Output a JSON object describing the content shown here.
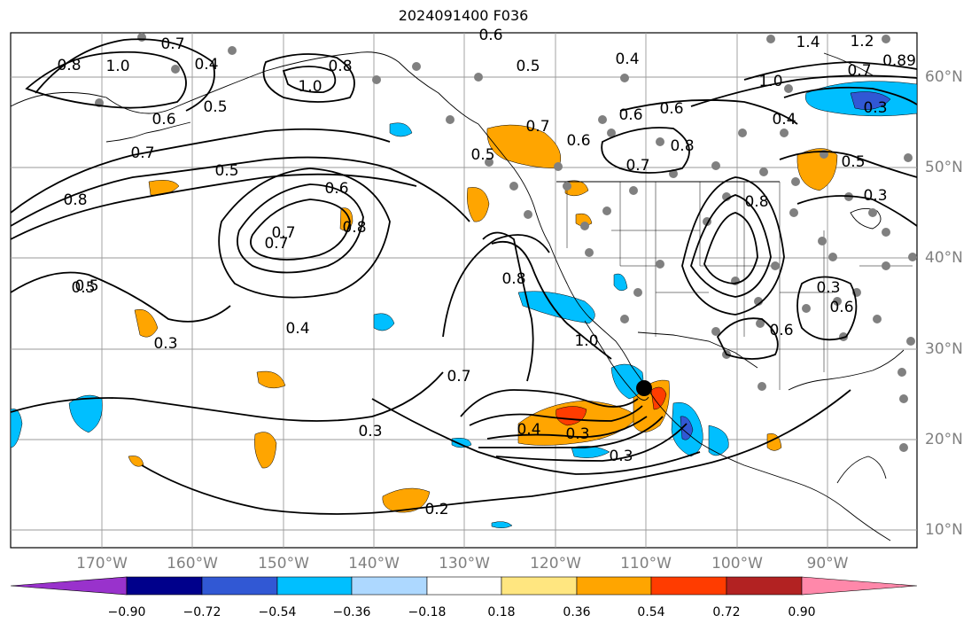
{
  "title": "2024091400 F036",
  "lat_labels": [
    "60°N",
    "50°N",
    "40°N",
    "30°N",
    "20°N",
    "10°N"
  ],
  "lon_labels": [
    "170°W",
    "160°W",
    "150°W",
    "140°W",
    "130°W",
    "120°W",
    "110°W",
    "100°W",
    "90°W"
  ],
  "colorbar": {
    "ticks": [
      "−0.90",
      "−0.72",
      "−0.54",
      "−0.36",
      "−0.18",
      "0.18",
      "0.36",
      "0.54",
      "0.72",
      "0.90"
    ],
    "colors": [
      "#9932cc",
      "#00008b",
      "#3158d4",
      "#00bfff",
      "#add8ff",
      "#ffffff",
      "#ffe680",
      "#ffa500",
      "#ff3c00",
      "#b22222",
      "#ff88aa"
    ]
  },
  "contour_labels": [
    "0.6",
    "0.8",
    "1.0",
    "0.7",
    "0.4",
    "0.6",
    "0.5",
    "0.7",
    "0.8",
    "0.5",
    "0.7",
    "1.0",
    "0.8",
    "0.6",
    "0.5",
    "0.7",
    "0.5",
    "0.4",
    "0.6",
    "0.6",
    "1.0",
    "1.4",
    "1.2",
    "0.7",
    "0.89",
    "0.4",
    "0.3",
    "0.5",
    "0.6",
    "0.7",
    "0.8",
    "0.3",
    "0.8",
    "0.5",
    "0.7",
    "0.8",
    "0.5",
    "0.3",
    "0.4",
    "0.7",
    "0.3",
    "0.8",
    "1.0",
    "0.6",
    "0.4",
    "0.3",
    "0.3",
    "0.2",
    "0.6",
    "0.3"
  ]
}
